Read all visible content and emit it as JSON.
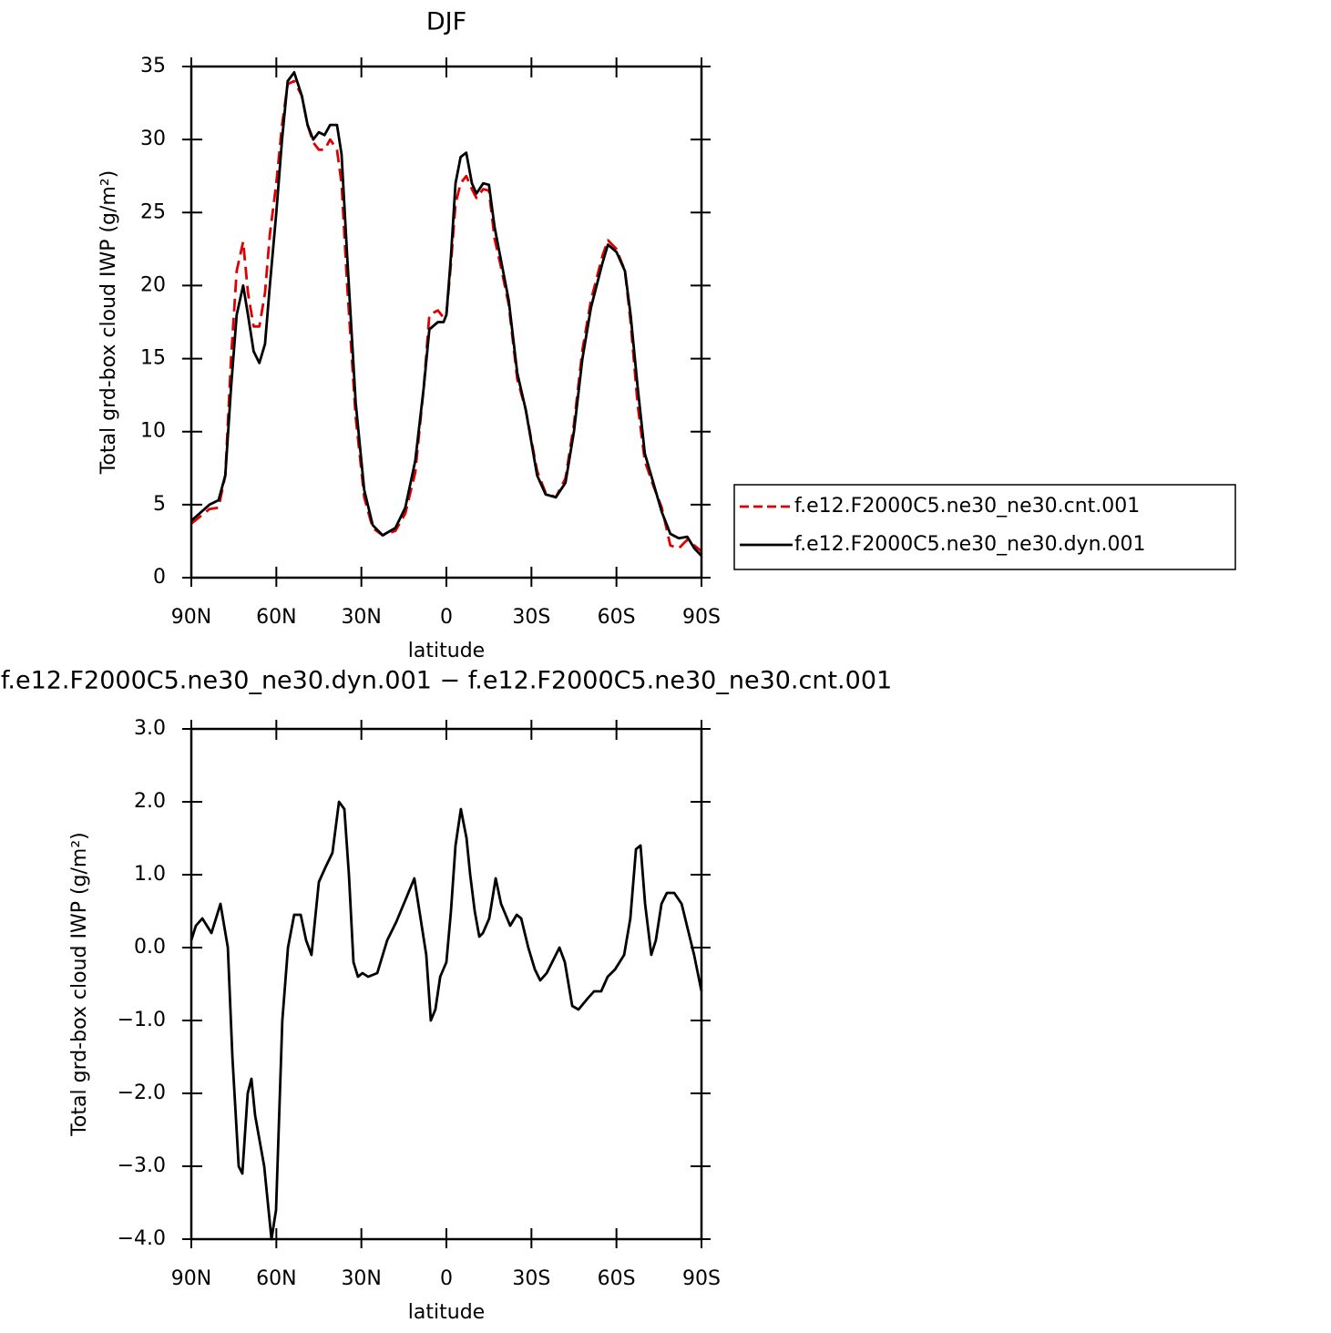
{
  "chart_data": [
    {
      "type": "line",
      "title": "DJF",
      "xlabel": "latitude",
      "ylabel": "Total grd-box cloud IWP (g/m²)",
      "x": [
        90,
        83.6,
        80.4,
        78,
        76,
        74,
        71.7,
        70,
        68,
        66,
        64,
        62.3,
        60,
        58,
        56,
        53.7,
        51,
        49,
        47,
        45,
        43,
        41,
        38.6,
        37,
        35,
        32,
        29,
        26,
        22.5,
        18,
        14.5,
        11,
        8,
        6,
        3,
        1,
        0,
        -1.6,
        -3.2,
        -5,
        -7,
        -9,
        -10.6,
        -13,
        -15,
        -17,
        -19,
        -22,
        -25,
        -28,
        -32,
        -35,
        -38.6,
        -42,
        -45,
        -48,
        -51,
        -55,
        -57,
        -60,
        -63,
        -65,
        -67.5,
        -70,
        -73,
        -76,
        -79,
        -82,
        -85,
        -87.5,
        -90
      ],
      "series": [
        {
          "name": "f.e12.F2000C5.ne30_ne30.cnt.001",
          "color": "#e00000",
          "linestyle": "dashed",
          "values": [
            3.7,
            4.7,
            4.8,
            7,
            15,
            21,
            23,
            19.5,
            17.2,
            17.2,
            19.5,
            23.5,
            27,
            31,
            33.8,
            34,
            33,
            31,
            29.8,
            29.3,
            29.3,
            30,
            29.3,
            27,
            20,
            11,
            5.5,
            3.4,
            2.9,
            3.2,
            4.4,
            7.2,
            13,
            18,
            18.3,
            17.8,
            18,
            21.5,
            25.6,
            27,
            27.5,
            26.6,
            26,
            26.6,
            26.5,
            23.2,
            21.5,
            18.7,
            13.6,
            11.5,
            7.3,
            5.8,
            5.5,
            6.8,
            10.5,
            15.6,
            19,
            22,
            23.1,
            22.5,
            21,
            17.5,
            11.8,
            8,
            6.3,
            4.8,
            2.2,
            2,
            2.6,
            2.2,
            1.8
          ]
        },
        {
          "name": "f.e12.F2000C5.ne30_ne30.dyn.001",
          "color": "#000000",
          "linestyle": "solid",
          "values": [
            3.9,
            5,
            5.3,
            7,
            13,
            18,
            20,
            18,
            15.5,
            14.7,
            16,
            20,
            25,
            30,
            34,
            34.6,
            33,
            31,
            30,
            30.5,
            30.3,
            31,
            31,
            29,
            22,
            12,
            6,
            3.6,
            2.9,
            3.4,
            4.8,
            8,
            13,
            17,
            17.5,
            17.5,
            18,
            22,
            27,
            28.8,
            29.1,
            27,
            26.3,
            27,
            26.9,
            24,
            22,
            19,
            14,
            11.5,
            7,
            5.7,
            5.5,
            6.5,
            10,
            15,
            18.5,
            21.5,
            22.8,
            22.3,
            21,
            18,
            13,
            8.5,
            6.5,
            4.5,
            3,
            2.7,
            2.8,
            2,
            1.5
          ]
        }
      ],
      "xlim": [
        90,
        -90
      ],
      "xticks": [
        {
          "value": 90,
          "label": "90N"
        },
        {
          "value": 60,
          "label": "60N"
        },
        {
          "value": 30,
          "label": "30N"
        },
        0,
        {
          "value": -30,
          "label": "30S"
        },
        {
          "value": -60,
          "label": "60S"
        },
        {
          "value": -90,
          "label": "90S"
        }
      ],
      "ylim": [
        0,
        35
      ],
      "yticks": [
        0,
        5,
        10,
        15,
        20,
        25,
        30,
        35
      ],
      "legend": "right"
    },
    {
      "type": "line",
      "title": "f.e12.F2000C5.ne30_ne30.dyn.001 − f.e12.F2000C5.ne30_ne30.cnt.001",
      "xlabel": "latitude",
      "ylabel": "Total grd-box cloud IWP (g/m²)",
      "x": [
        90,
        88.4,
        86.1,
        82.9,
        79.7,
        77.1,
        75.5,
        73.3,
        72.0,
        70.1,
        68.8,
        67.5,
        64.3,
        61.7,
        60.1,
        57.9,
        55.9,
        53.7,
        51.4,
        49.5,
        47.6,
        45.0,
        42.7,
        40.2,
        37.9,
        36.0,
        34.4,
        32.8,
        31.2,
        29.6,
        27.6,
        24.4,
        20.9,
        17.7,
        14.5,
        11.3,
        8.7,
        7.1,
        5.5,
        3.9,
        2.2,
        0,
        -1.6,
        -3.2,
        -5.1,
        -7.1,
        -8.4,
        -10.0,
        -11.6,
        -12.9,
        -15.1,
        -17.4,
        -19.3,
        -22.5,
        -24.8,
        -26.4,
        -28.9,
        -31.2,
        -33.1,
        -35.4,
        -39.9,
        -41.8,
        -44.4,
        -46.6,
        -49.8,
        -52.1,
        -54.6,
        -56.9,
        -59.5,
        -62.7,
        -64.9,
        -66.9,
        -68.5,
        -70.1,
        -72.3,
        -73.9,
        -75.9,
        -77.8,
        -80.4,
        -83.0,
        -85.5,
        -87.4,
        -90
      ],
      "values": [
        0.1,
        0.3,
        0.4,
        0.2,
        0.6,
        0,
        -1.5,
        -3.0,
        -3.1,
        -2,
        -1.8,
        -2.3,
        -3.0,
        -4.0,
        -3.6,
        -1,
        0,
        0.45,
        0.45,
        0.1,
        -0.1,
        0.9,
        1.1,
        1.3,
        2.0,
        1.9,
        1.0,
        -0.2,
        -0.4,
        -0.35,
        -0.4,
        -0.35,
        0.1,
        0.35,
        0.65,
        0.95,
        0.3,
        -0.1,
        -1.0,
        -0.85,
        -0.4,
        -0.2,
        0.5,
        1.4,
        1.9,
        1.5,
        1.0,
        0.5,
        0.15,
        0.2,
        0.4,
        0.95,
        0.6,
        0.3,
        0.45,
        0.4,
        0.0,
        -0.3,
        -0.45,
        -0.35,
        0.0,
        -0.2,
        -0.8,
        -0.85,
        -0.7,
        -0.6,
        -0.6,
        -0.4,
        -0.3,
        -0.1,
        0.4,
        1.35,
        1.4,
        0.6,
        -0.1,
        0.1,
        0.6,
        0.75,
        0.75,
        0.6,
        0.2,
        -0.1,
        -0.6
      ],
      "color": "#000000",
      "linestyle": "solid",
      "xlim": [
        90,
        -90
      ],
      "xticks": [
        {
          "value": 90,
          "label": "90N"
        },
        {
          "value": 60,
          "label": "60N"
        },
        {
          "value": 30,
          "label": "30N"
        },
        0,
        {
          "value": -30,
          "label": "30S"
        },
        {
          "value": -60,
          "label": "60S"
        },
        {
          "value": -90,
          "label": "90S"
        }
      ],
      "ylim": [
        -4,
        3
      ],
      "yticks": [
        {
          "value": -4,
          "label": "−4.0"
        },
        {
          "value": -3,
          "label": "−3.0"
        },
        {
          "value": -2,
          "label": "−2.0"
        },
        {
          "value": -1,
          "label": "−1.0"
        },
        {
          "value": 0,
          "label": "0.0"
        },
        {
          "value": 1,
          "label": "1.0"
        },
        {
          "value": 2,
          "label": "2.0"
        },
        {
          "value": 3,
          "label": "3.0"
        }
      ]
    }
  ]
}
